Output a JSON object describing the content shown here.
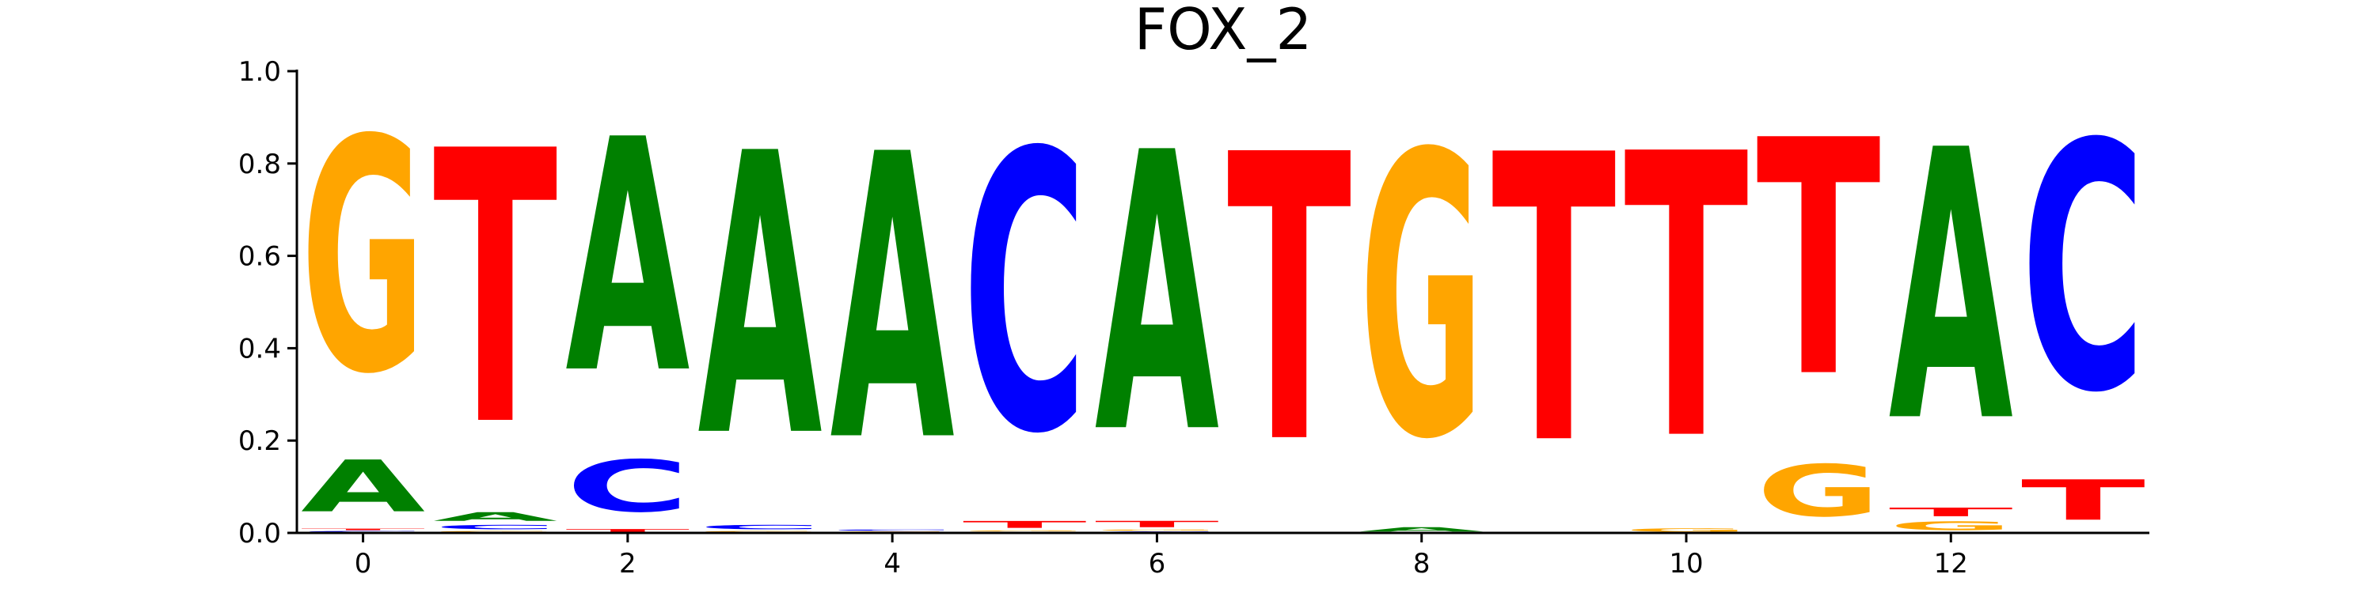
{
  "chart_data": {
    "type": "sequence-logo",
    "title": "FOX_2",
    "xlabel": "",
    "ylabel": "",
    "ylim": [
      0.0,
      1.0
    ],
    "xlim": [
      -0.5,
      13.5
    ],
    "x_ticks": [
      "0",
      "2",
      "4",
      "6",
      "8",
      "10",
      "12"
    ],
    "x_tick_values": [
      0,
      2,
      4,
      6,
      8,
      10,
      12
    ],
    "y_ticks": [
      "0.0",
      "0.2",
      "0.4",
      "0.6",
      "0.8",
      "1.0"
    ],
    "y_tick_values": [
      0.0,
      0.2,
      0.4,
      0.6,
      0.8,
      1.0
    ],
    "colors": {
      "A": "#008000",
      "C": "#0000ff",
      "G": "#ffa500",
      "T": "#ff0000"
    },
    "positions": [
      {
        "pos": 0,
        "stack": [
          [
            "C",
            0.005
          ],
          [
            "T",
            0.005
          ],
          [
            "A",
            0.18
          ],
          [
            "G",
            0.81
          ]
        ]
      },
      {
        "pos": 1,
        "stack": [
          [
            "G",
            0.005
          ],
          [
            "C",
            0.015
          ],
          [
            "A",
            0.03
          ],
          [
            "T",
            0.95
          ]
        ]
      },
      {
        "pos": 2,
        "stack": [
          [
            "T",
            0.01
          ],
          [
            "C",
            0.18
          ],
          [
            "A",
            0.81
          ]
        ]
      },
      {
        "pos": 3,
        "stack": [
          [
            "G",
            0.005
          ],
          [
            "C",
            0.015
          ],
          [
            "A",
            0.98
          ]
        ]
      },
      {
        "pos": 4,
        "stack": [
          [
            "G",
            0.004
          ],
          [
            "C",
            0.004
          ],
          [
            "A",
            0.992
          ]
        ]
      },
      {
        "pos": 5,
        "stack": [
          [
            "A",
            0.003
          ],
          [
            "G",
            0.003
          ],
          [
            "T",
            0.024
          ],
          [
            "C",
            0.97
          ]
        ]
      },
      {
        "pos": 6,
        "stack": [
          [
            "C",
            0.004
          ],
          [
            "G",
            0.004
          ],
          [
            "T",
            0.022
          ],
          [
            "A",
            0.97
          ]
        ]
      },
      {
        "pos": 7,
        "stack": [
          [
            "A",
            0.003
          ],
          [
            "T",
            0.997
          ]
        ]
      },
      {
        "pos": 8,
        "stack": [
          [
            "A",
            0.015
          ],
          [
            "G",
            0.985
          ]
        ]
      },
      {
        "pos": 9,
        "stack": [
          [
            "T",
            1.0
          ]
        ]
      },
      {
        "pos": 10,
        "stack": [
          [
            "G",
            0.012
          ],
          [
            "T",
            0.988
          ]
        ]
      },
      {
        "pos": 11,
        "stack": [
          [
            "G",
            0.18
          ],
          [
            "T",
            0.82
          ]
        ]
      },
      {
        "pos": 12,
        "stack": [
          [
            "G",
            0.03
          ],
          [
            "T",
            0.03
          ],
          [
            "A",
            0.94
          ]
        ]
      },
      {
        "pos": 13,
        "stack": [
          [
            "T",
            0.14
          ],
          [
            "C",
            0.86
          ]
        ]
      }
    ]
  }
}
